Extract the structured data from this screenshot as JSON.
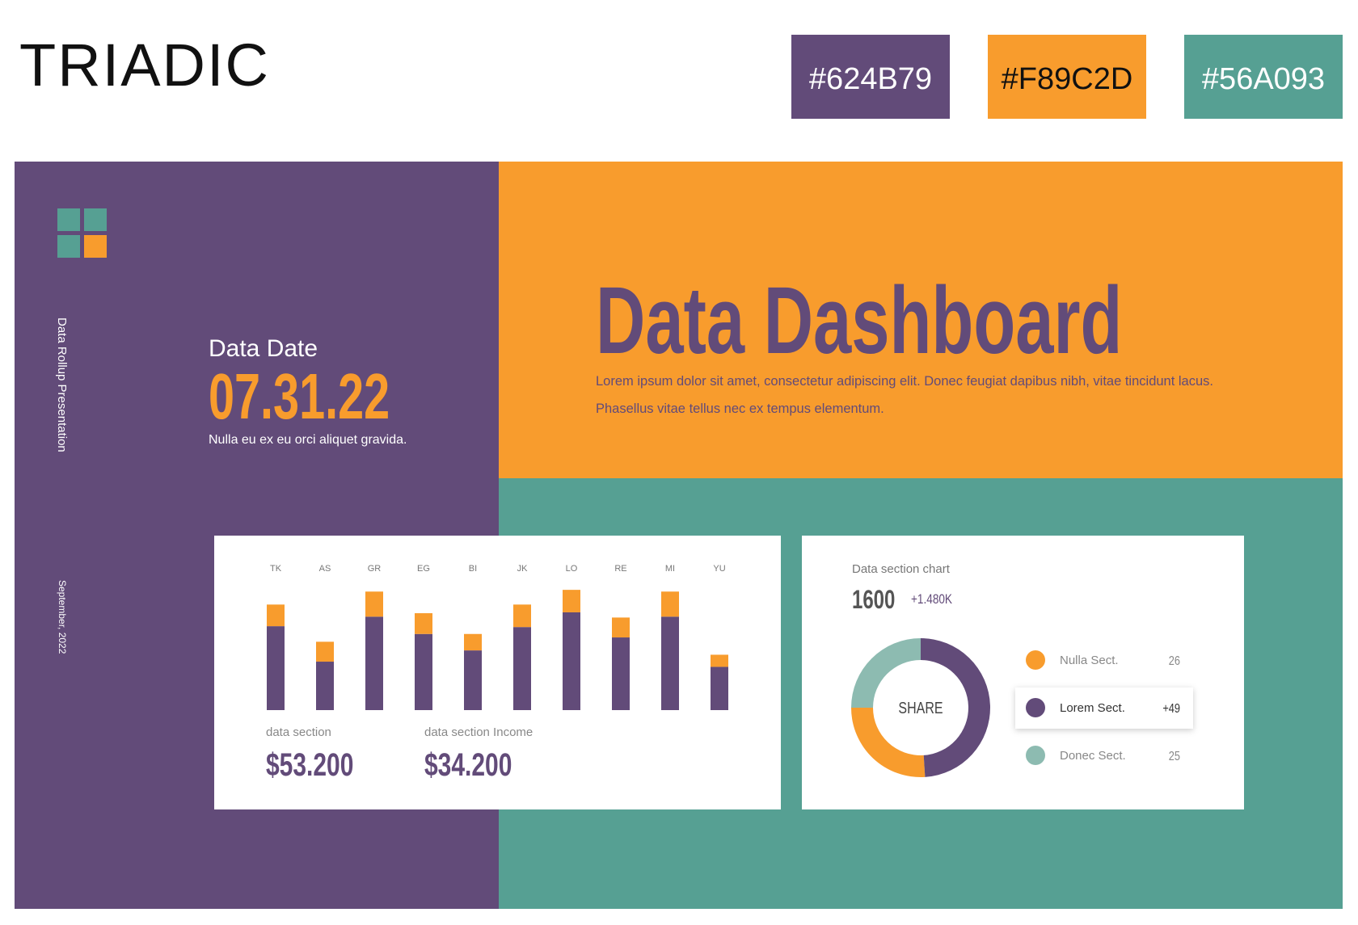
{
  "header": {
    "title": "TRIADIC",
    "swatches": [
      {
        "label": "#624B79",
        "color": "#624B79"
      },
      {
        "label": "#F89C2D",
        "color": "#F89C2D"
      },
      {
        "label": "#56A093",
        "color": "#56A093"
      }
    ]
  },
  "sidebar": {
    "vertical_title": "Data Rollup Presentation",
    "date_caption": "September, 2022"
  },
  "data_date": {
    "label": "Data Date",
    "value": "07.31.22",
    "note": "Nulla eu ex eu orci aliquet gravida."
  },
  "hero": {
    "title": "Data Dashboard",
    "text": "Lorem ipsum dolor sit amet, consectetur adipiscing elit. Donec feugiat dapibus nibh, vitae tincidunt lacus. Phasellus vitae tellus nec ex tempus elementum."
  },
  "bar_card": {
    "stats": [
      {
        "label": "data section",
        "value": "$53.200"
      },
      {
        "label": "data section Income",
        "value": "$34.200"
      }
    ]
  },
  "donut_card": {
    "title": "Data section chart",
    "total": "1600",
    "change": "+1.480K"
  },
  "chart_data": [
    {
      "type": "bar",
      "stacked": true,
      "categories": [
        "TK",
        "AS",
        "GR",
        "EG",
        "BI",
        "JK",
        "LO",
        "RE",
        "MI",
        "YU"
      ],
      "series": [
        {
          "color": "#624B79",
          "values": [
            97,
            56,
            108,
            88,
            69,
            96,
            113,
            84,
            108,
            50
          ]
        },
        {
          "color": "#F89C2D",
          "values": [
            25,
            23,
            29,
            24,
            19,
            26,
            26,
            23,
            29,
            14
          ]
        }
      ]
    },
    {
      "type": "pie",
      "center_label": "SHARE",
      "categories": [
        "Nulla Sect.",
        "Lorem Sect.",
        "Donec Sect."
      ],
      "values": [
        26,
        49,
        25
      ],
      "value_labels": [
        "26",
        "+49",
        "25"
      ],
      "colors": [
        "#F89C2D",
        "#624B79",
        "#8DBBB1"
      ]
    }
  ]
}
